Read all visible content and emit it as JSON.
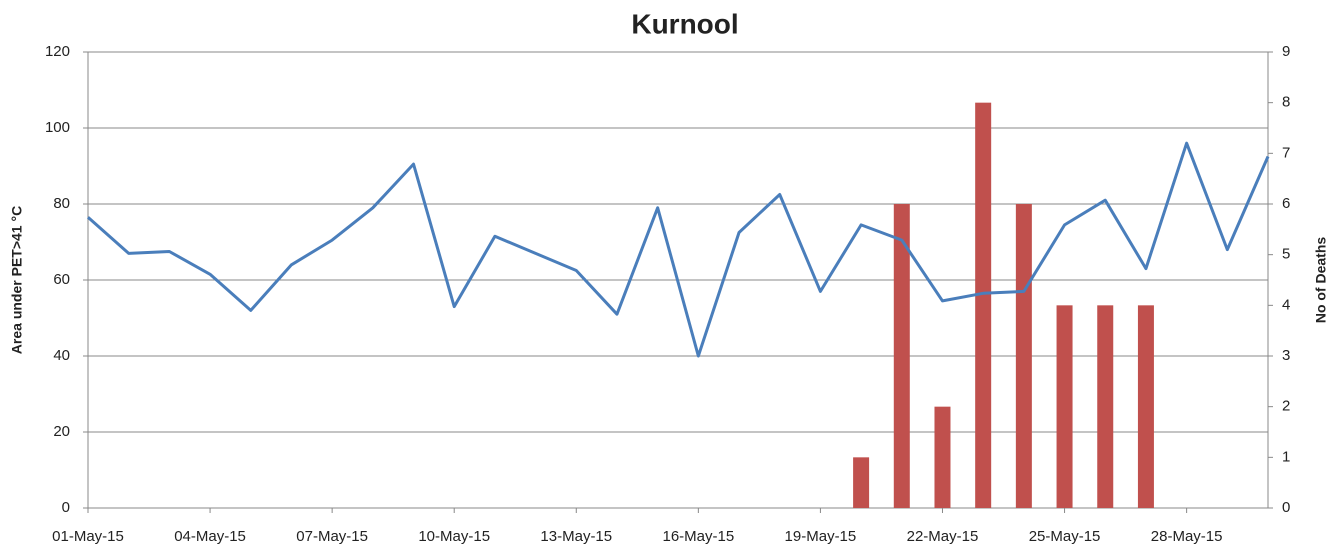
{
  "chart_data": {
    "type": "bar-line",
    "title": "Kurnool",
    "y_label": "Area under PET>41 °C",
    "y2_label": "No of Deaths",
    "categories": [
      "01-May-15",
      null,
      null,
      "04-May-15",
      null,
      null,
      "07-May-15",
      null,
      null,
      "10-May-15",
      null,
      null,
      "13-May-15",
      null,
      null,
      "16-May-15",
      null,
      null,
      "19-May-15",
      null,
      null,
      "22-May-15",
      null,
      null,
      "25-May-15",
      null,
      null,
      "28-May-15",
      null,
      null
    ],
    "series": [
      {
        "type": "line",
        "color": "#4a7ebb",
        "values": [
          76.5,
          67,
          67.5,
          61.5,
          52,
          64,
          70.5,
          79,
          90.5,
          53,
          71.5,
          67,
          62.5,
          51,
          79,
          40,
          72.5,
          82.5,
          57,
          74.5,
          70.5,
          54.5,
          56.5,
          57,
          74.5,
          81,
          63,
          96,
          68,
          92.5
        ]
      },
      {
        "type": "bar",
        "axis": "y2",
        "color": "#c0504d",
        "values": [
          null,
          null,
          null,
          null,
          null,
          null,
          null,
          null,
          null,
          null,
          null,
          null,
          null,
          null,
          null,
          null,
          null,
          null,
          null,
          1,
          6,
          2,
          8,
          6,
          4,
          4,
          4,
          null,
          null,
          null
        ]
      }
    ],
    "ylim": [
      0,
      120
    ],
    "yticks": [
      0,
      20,
      40,
      60,
      80,
      100,
      120
    ],
    "y2lim": [
      0,
      9
    ],
    "y2ticks": [
      0,
      1,
      2,
      3,
      4,
      5,
      6,
      7,
      8,
      9
    ],
    "grid": true
  }
}
